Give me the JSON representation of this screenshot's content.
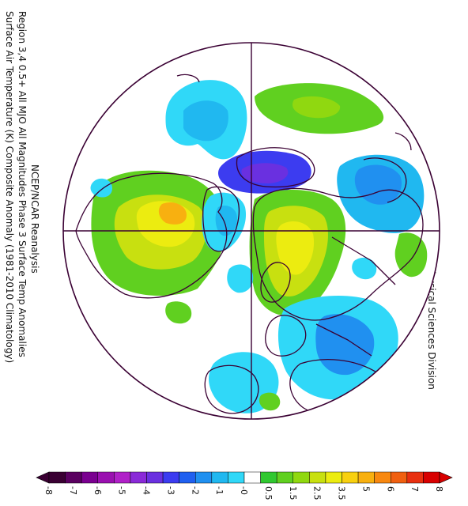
{
  "title": {
    "line1": "Surface Air Temperature (K) Composite Anomaly (1981-2010 Climatology)",
    "line2": "Region 3,4 0.5+ All MJO All Magnitudes Phase 3 Surface Temp Anomalies",
    "line3": "NCEP/NCAR Reanalysis"
  },
  "credit": "NOAA/ESRL Physical Sciences Division",
  "colorbar": {
    "colors": [
      "#3a0033",
      "#5a0060",
      "#7a0090",
      "#9a10b0",
      "#b020c8",
      "#8a2ad8",
      "#6a30e0",
      "#3c3cf0",
      "#2060f0",
      "#2090f0",
      "#20b8f0",
      "#30d8f8",
      "#ffffff",
      "#30c830",
      "#60d020",
      "#90d810",
      "#c8e010",
      "#ecec10",
      "#f8d010",
      "#f8b010",
      "#f88810",
      "#f06010",
      "#e83010",
      "#d80000"
    ],
    "labels": [
      "-8",
      "-7",
      "-6",
      "-5",
      "-4",
      "-3",
      "-2",
      "-1",
      "-0",
      "0.5",
      "1.5",
      "2.5",
      "3.5",
      "5",
      "6",
      "7",
      "8"
    ]
  }
}
